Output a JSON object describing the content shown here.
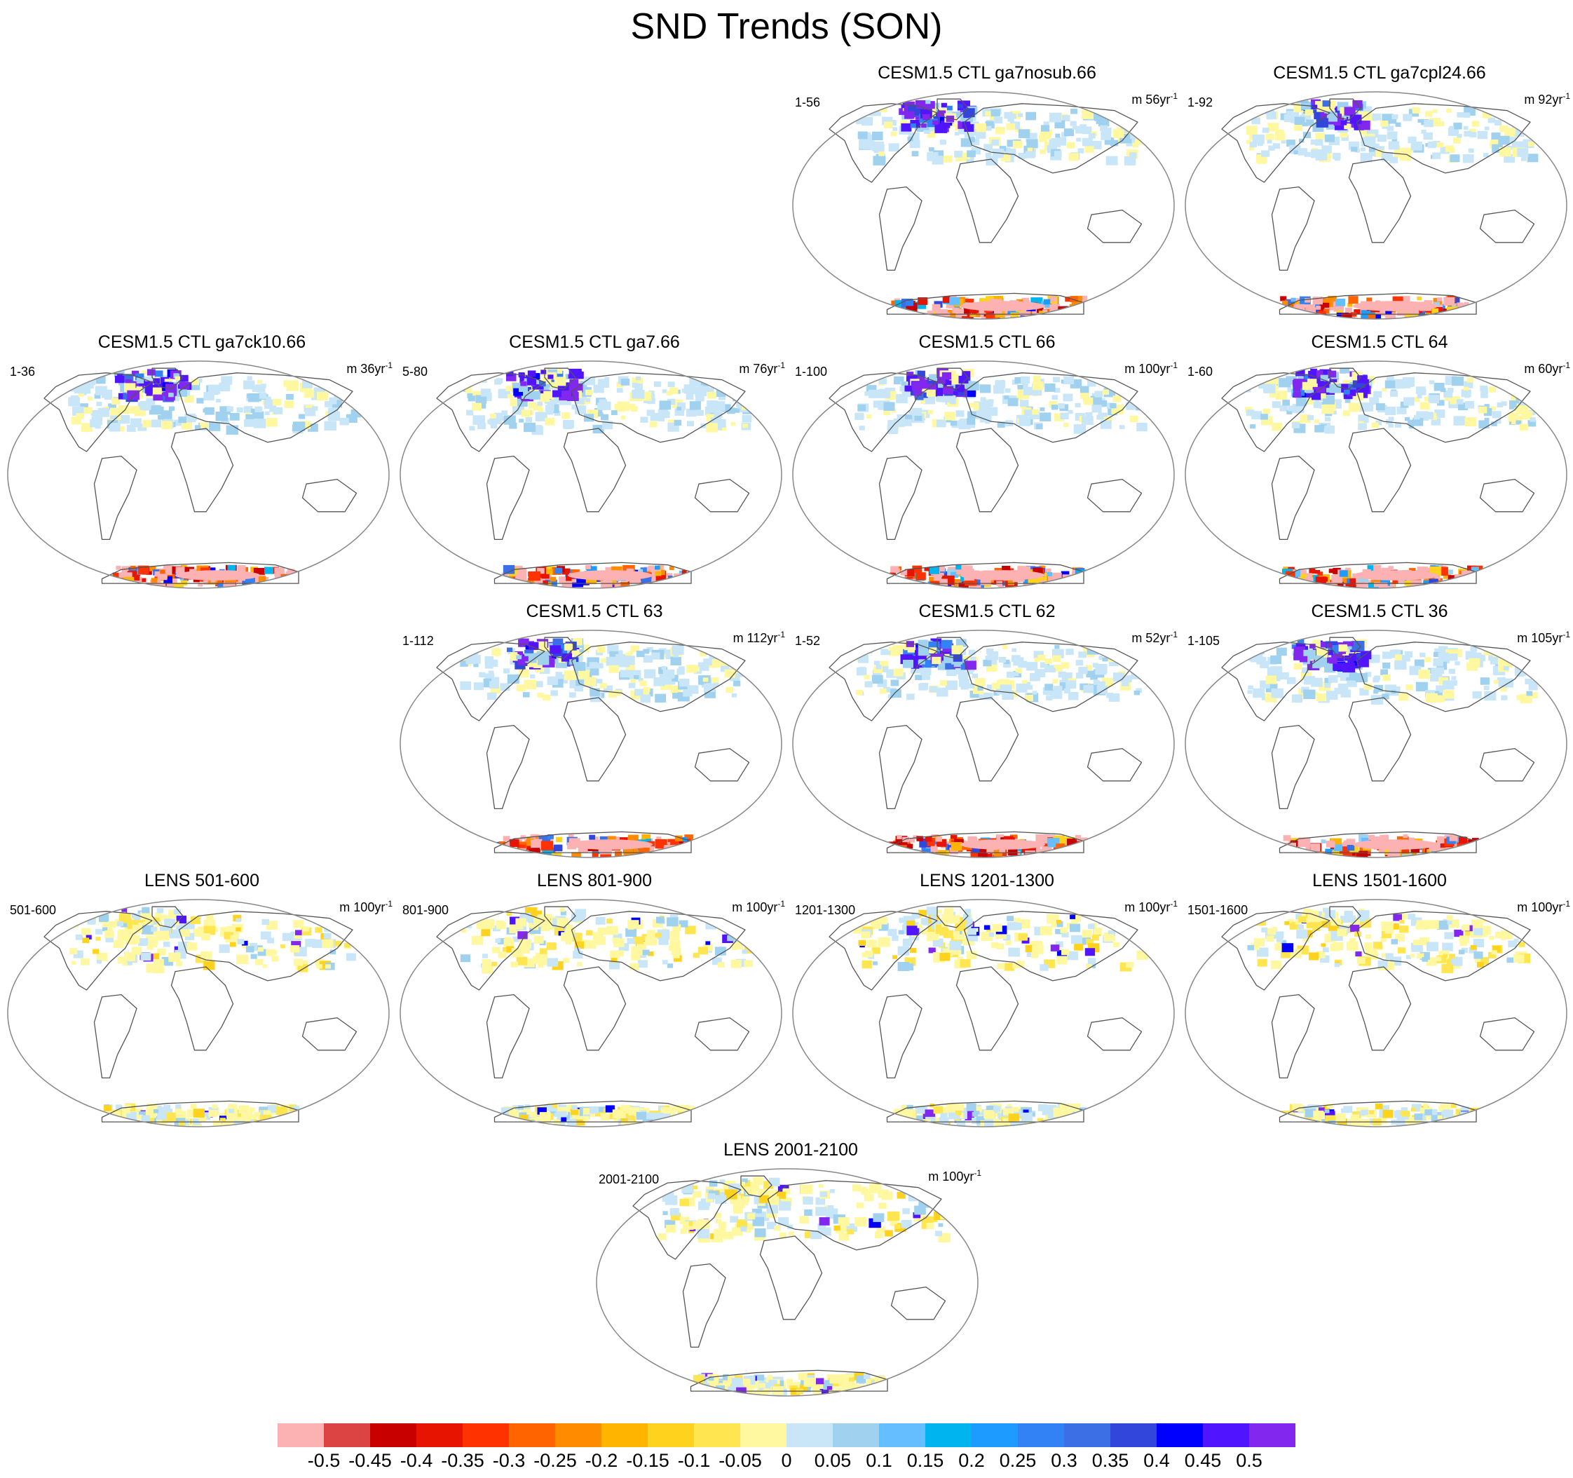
{
  "title": "SND Trends (SON)",
  "panels": [
    {
      "title": "CESM1.5 CTL ga7nosub.66",
      "left_label": "1-56",
      "right_label": "m 56yr",
      "row": 0,
      "col": 2,
      "pattern": "ctl",
      "seed": 11
    },
    {
      "title": "CESM1.5 CTL ga7cpl24.66",
      "left_label": "1-92",
      "right_label": "m 92yr",
      "row": 0,
      "col": 3,
      "pattern": "ctl",
      "seed": 23
    },
    {
      "title": "CESM1.5 CTL ga7ck10.66",
      "left_label": "1-36",
      "right_label": "m 36yr",
      "row": 1,
      "col": 0,
      "pattern": "ctl",
      "seed": 37
    },
    {
      "title": "CESM1.5 CTL ga7.66",
      "left_label": "5-80",
      "right_label": "m 76yr",
      "row": 1,
      "col": 1,
      "pattern": "ctl",
      "seed": 41
    },
    {
      "title": "CESM1.5 CTL 66",
      "left_label": "1-100",
      "right_label": "m 100yr",
      "row": 1,
      "col": 2,
      "pattern": "ctl",
      "seed": 53
    },
    {
      "title": "CESM1.5 CTL 64",
      "left_label": "1-60",
      "right_label": "m 60yr",
      "row": 1,
      "col": 3,
      "pattern": "ctl",
      "seed": 67
    },
    {
      "title": "CESM1.5 CTL 63",
      "left_label": "1-112",
      "right_label": "m 112yr",
      "row": 2,
      "col": 1,
      "pattern": "ctl",
      "seed": 71
    },
    {
      "title": "CESM1.5 CTL 62",
      "left_label": "1-52",
      "right_label": "m 52yr",
      "row": 2,
      "col": 2,
      "pattern": "ctl",
      "seed": 83
    },
    {
      "title": "CESM1.5 CTL 36",
      "left_label": "1-105",
      "right_label": "m 105yr",
      "row": 2,
      "col": 3,
      "pattern": "ctl",
      "seed": 97
    },
    {
      "title": "LENS 501-600",
      "left_label": "501-600",
      "right_label": "m 100yr",
      "row": 3,
      "col": 0,
      "pattern": "lens",
      "seed": 101
    },
    {
      "title": "LENS 801-900",
      "left_label": "801-900",
      "right_label": "m 100yr",
      "row": 3,
      "col": 1,
      "pattern": "lens",
      "seed": 113
    },
    {
      "title": "LENS 1201-1300",
      "left_label": "1201-1300",
      "right_label": "m 100yr",
      "row": 3,
      "col": 2,
      "pattern": "lens",
      "seed": 127
    },
    {
      "title": "LENS 1501-1600",
      "left_label": "1501-1600",
      "right_label": "m 100yr",
      "row": 3,
      "col": 3,
      "pattern": "lens",
      "seed": 131
    },
    {
      "title": "LENS 2001-2100",
      "left_label": "2001-2100",
      "right_label": "m 100yr",
      "row": 4,
      "col": 1.5,
      "pattern": "lens",
      "seed": 149
    }
  ],
  "unit_superscript": "-1",
  "colorbar": {
    "colors": [
      "#fcb2b2",
      "#dc4444",
      "#c80000",
      "#e61400",
      "#ff3200",
      "#ff6400",
      "#ff8c00",
      "#ffb400",
      "#ffd21e",
      "#ffe650",
      "#fff8a0",
      "#c8e6f8",
      "#a0d2f0",
      "#64beff",
      "#00b4f0",
      "#1e9bff",
      "#3282f5",
      "#3c6ee6",
      "#3246dc",
      "#0000ff",
      "#5014ff",
      "#8228ee"
    ],
    "labels": [
      "-0.5",
      "-0.45",
      "-0.4",
      "-0.35",
      "-0.3",
      "-0.25",
      "-0.2",
      "-0.15",
      "-0.1",
      "-0.05",
      "0",
      "0.05",
      "0.1",
      "0.15",
      "0.2",
      "0.25",
      "0.3",
      "0.35",
      "0.4",
      "0.45",
      "0.5"
    ]
  }
}
